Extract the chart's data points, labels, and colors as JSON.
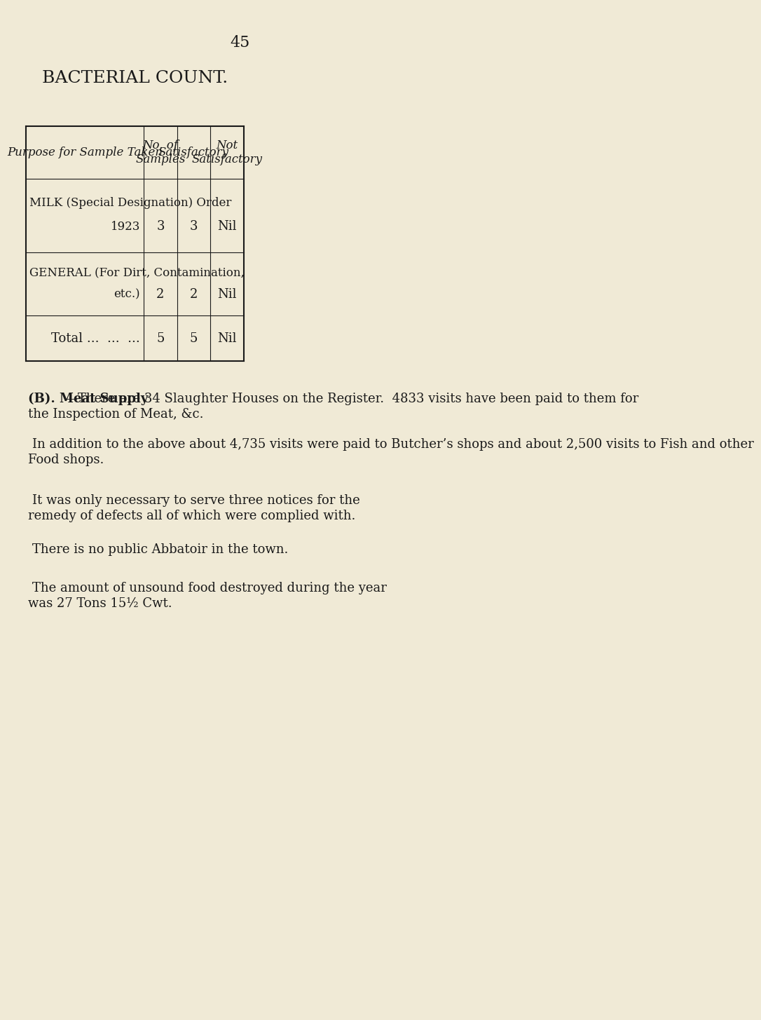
{
  "bg_color": "#f0ead6",
  "page_number": "45",
  "title": "BACTERIAL COUNT.",
  "table": {
    "col_headers": [
      "Purpose for Sample Taken",
      "No. of\nSamples",
      "Satisfactory",
      "Not\nSatisfactory"
    ],
    "rows": [
      [
        "MILK (Special Designation) Order\n                              1923",
        "3",
        "3",
        "Nil"
      ],
      [
        "GENERAL (For Dirt, Contamination,\n                                    etc.)",
        "2",
        "2",
        "Nil"
      ],
      [
        "Total ...  ...  ...",
        "5",
        "5",
        "Nil"
      ]
    ]
  },
  "paragraphs": [
    {
      "indent": false,
      "bold_prefix": "(B). Meat Supply",
      "bold_suffix": "—There are 34 Slaughter Houses on the Register.  4833 visits have been paid to them for the Inspection of Meat, &c."
    },
    {
      "indent": true,
      "bold_prefix": "",
      "bold_suffix": "In addition to the above about 4,735 visits were paid to Butcher’s shops and about 2,500 visits to Fish and other Food shops."
    },
    {
      "indent": true,
      "bold_prefix": "",
      "bold_suffix": "It was only necessary to serve three notices for the remedy of defects all of which were complied with."
    },
    {
      "indent": true,
      "bold_prefix": "",
      "bold_suffix": "There is no public Abbatoir in the town."
    },
    {
      "indent": true,
      "bold_prefix": "",
      "bold_suffix": "The amount of unsound food destroyed during the year was 27 Tons 15½ Cwt."
    }
  ],
  "font_color": "#1a1a1a",
  "title_fontsize": 18,
  "body_fontsize": 13,
  "header_fontsize": 12,
  "page_num_fontsize": 16
}
